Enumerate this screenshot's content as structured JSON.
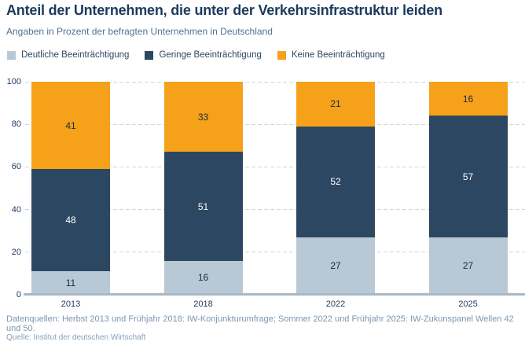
{
  "header": {
    "title": "Anteil der Unternehmen, die unter der Verkehrsinfrastruktur leiden",
    "subtitle": "Angaben in Prozent der befragten Unternehmen in Deutschland"
  },
  "legend": {
    "items": [
      {
        "label": "Deutliche Beeinträchtigung",
        "color": "#b9c8d5"
      },
      {
        "label": "Geringe Beeinträchtigung",
        "color": "#2c4761"
      },
      {
        "label": "Keine Beeinträchtigung",
        "color": "#f6a11a"
      }
    ]
  },
  "chart_data": {
    "type": "bar",
    "stacked": true,
    "title": "Anteil der Unternehmen, die unter der Verkehrsinfrastruktur leiden",
    "subtitle": "Angaben in Prozent der befragten Unternehmen in Deutschland",
    "categories": [
      "2013",
      "2018",
      "2022",
      "2025"
    ],
    "series": [
      {
        "name": "Deutliche Beeinträchtigung",
        "color": "#b9c8d5",
        "label_color": "#1a2b38",
        "values": [
          11,
          16,
          27,
          27
        ]
      },
      {
        "name": "Geringe Beeinträchtigung",
        "color": "#2c4761",
        "label_color": "#ffffff",
        "values": [
          48,
          51,
          52,
          57
        ]
      },
      {
        "name": "Keine Beeinträchtigung",
        "color": "#f6a11a",
        "label_color": "#1a2b38",
        "values": [
          41,
          33,
          21,
          16
        ]
      }
    ],
    "ylim": [
      0,
      100
    ],
    "yticks": [
      0,
      20,
      40,
      60,
      80,
      100
    ],
    "grid": "horizontal-dashed",
    "legend_position": "top",
    "xlabel": "",
    "ylabel": ""
  },
  "footer": {
    "line1": "Datenquellen: Herbst 2013 und Frühjahr 2018: IW-Konjunkturumfrage; Sommer 2022 und Frühjahr 2025: IW-Zukunspanel Wellen 42 und 50.",
    "line2": "Quelle: Institut der deutschen Wirtschaft"
  },
  "colors": {
    "title": "#1c3a5e",
    "subtitle": "#53718e",
    "axis_label": "#1c3a5e",
    "gridline": "#ccd8e2",
    "baseline": "#a7b9c7",
    "footer": "#7d96ad",
    "background": "#ffffff"
  }
}
